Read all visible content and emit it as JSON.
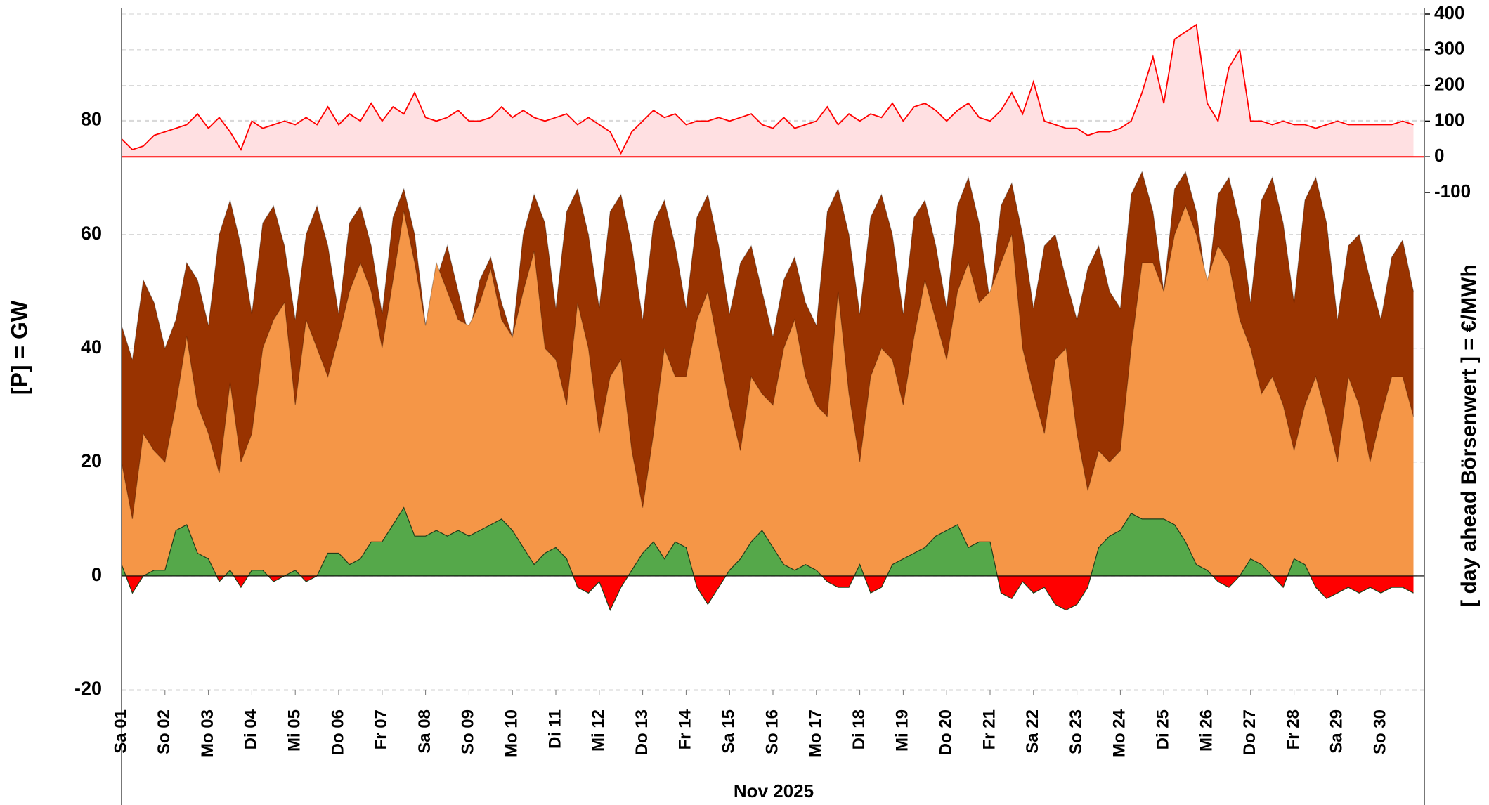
{
  "chart_data": {
    "type": "area",
    "xlabel": "Nov 2025",
    "ylabel": "[P]  =  GW",
    "y2label": "[ day ahead Börsenwert ]  =  €/MWh",
    "categories": [
      "Sa 01",
      null,
      null,
      null,
      "So 02",
      null,
      null,
      null,
      "Mo 03",
      null,
      null,
      null,
      "Di 04",
      null,
      null,
      null,
      "Mi 05",
      null,
      null,
      null,
      "Do 06",
      null,
      null,
      null,
      "Fr 07",
      null,
      null,
      null,
      "Sa 08",
      null,
      null,
      null,
      "So 09",
      null,
      null,
      null,
      "Mo 10",
      null,
      null,
      null,
      "Di 11",
      null,
      null,
      null,
      "Mi 12",
      null,
      null,
      null,
      "Do 13",
      null,
      null,
      null,
      "Fr 14",
      null,
      null,
      null,
      "Sa 15",
      null,
      null,
      null,
      "So 16",
      null,
      null,
      null,
      "Mo 17",
      null,
      null,
      null,
      "Di 18",
      null,
      null,
      null,
      "Mi 19",
      null,
      null,
      null,
      "Do 20",
      null,
      null,
      null,
      "Fr 21",
      null,
      null,
      null,
      "Sa 22",
      null,
      null,
      null,
      "So 23",
      null,
      null,
      null,
      "Mo 24",
      null,
      null,
      null,
      "Di 25",
      null,
      null,
      null,
      "Mi 26",
      null,
      null,
      null,
      "Do 27",
      null,
      null,
      null,
      "Fr 28",
      null,
      null,
      null,
      "Sa 29",
      null,
      null,
      null,
      "So 30",
      null,
      null,
      null
    ],
    "series": [
      {
        "color": "#993300",
        "values": [
          44,
          38,
          52,
          48,
          40,
          45,
          55,
          52,
          44,
          60,
          66,
          58,
          46,
          62,
          65,
          58,
          45,
          60,
          65,
          58,
          46,
          62,
          65,
          58,
          46,
          63,
          68,
          60,
          44,
          52,
          58,
          50,
          42,
          52,
          56,
          48,
          42,
          60,
          67,
          62,
          47,
          64,
          68,
          60,
          47,
          64,
          67,
          58,
          45,
          62,
          66,
          58,
          47,
          63,
          67,
          58,
          46,
          55,
          58,
          50,
          42,
          52,
          56,
          48,
          44,
          64,
          68,
          60,
          46,
          63,
          67,
          60,
          46,
          63,
          66,
          58,
          47,
          65,
          70,
          62,
          48,
          65,
          69,
          60,
          47,
          58,
          60,
          52,
          45,
          54,
          58,
          50,
          47,
          67,
          71,
          64,
          50,
          68,
          71,
          64,
          50,
          67,
          70,
          62,
          48,
          66,
          70,
          62,
          48,
          66,
          70,
          62,
          45,
          58,
          60,
          52,
          45,
          56,
          59,
          50
        ]
      },
      {
        "color": "#f59647",
        "values": [
          20,
          10,
          25,
          22,
          20,
          30,
          42,
          30,
          25,
          18,
          34,
          20,
          25,
          40,
          45,
          48,
          30,
          45,
          40,
          35,
          42,
          50,
          55,
          50,
          40,
          52,
          64,
          55,
          44,
          55,
          50,
          45,
          44,
          48,
          54,
          45,
          42,
          50,
          57,
          40,
          38,
          30,
          48,
          40,
          25,
          35,
          38,
          22,
          12,
          25,
          40,
          35,
          35,
          45,
          50,
          40,
          30,
          22,
          35,
          32,
          30,
          40,
          45,
          35,
          30,
          28,
          50,
          32,
          20,
          35,
          40,
          38,
          30,
          42,
          52,
          45,
          38,
          50,
          55,
          48,
          50,
          55,
          60,
          40,
          32,
          25,
          38,
          40,
          25,
          15,
          22,
          20,
          22,
          40,
          55,
          55,
          50,
          60,
          65,
          60,
          52,
          58,
          55,
          45,
          40,
          32,
          35,
          30,
          22,
          30,
          35,
          28,
          20,
          35,
          30,
          20,
          28,
          35,
          35,
          28
        ]
      },
      {
        "color": "#55a84a",
        "negative_color": "#ff0000",
        "values": [
          2,
          -3,
          0,
          1,
          1,
          8,
          9,
          4,
          3,
          -1,
          1,
          -2,
          1,
          1,
          -1,
          0,
          1,
          -1,
          0,
          4,
          4,
          2,
          3,
          6,
          6,
          9,
          12,
          7,
          7,
          8,
          7,
          8,
          7,
          8,
          9,
          10,
          8,
          5,
          2,
          4,
          5,
          3,
          -2,
          -3,
          -1,
          -6,
          -2,
          1,
          4,
          6,
          3,
          6,
          5,
          -2,
          -5,
          -2,
          1,
          3,
          6,
          8,
          5,
          2,
          1,
          2,
          1,
          -1,
          -2,
          -2,
          2,
          -3,
          -2,
          2,
          3,
          4,
          5,
          7,
          8,
          9,
          5,
          6,
          6,
          -3,
          -4,
          -1,
          -3,
          -2,
          -5,
          -6,
          -5,
          -2,
          5,
          7,
          8,
          11,
          10,
          10,
          10,
          9,
          6,
          2,
          1,
          -1,
          -2,
          0,
          3,
          2,
          0,
          -2,
          3,
          2,
          -2,
          -4,
          -3,
          -2,
          -3,
          -2,
          -3,
          -2,
          -2,
          -3
        ]
      },
      {
        "color": "#ff0000",
        "fill": "#ffe0e2",
        "axis": "y2",
        "values": [
          50,
          20,
          30,
          60,
          70,
          80,
          90,
          120,
          80,
          110,
          70,
          20,
          100,
          80,
          90,
          100,
          90,
          110,
          90,
          140,
          90,
          120,
          100,
          150,
          100,
          140,
          120,
          180,
          110,
          100,
          110,
          130,
          100,
          100,
          110,
          140,
          110,
          130,
          110,
          100,
          110,
          120,
          90,
          110,
          90,
          70,
          10,
          70,
          100,
          130,
          110,
          120,
          90,
          100,
          100,
          110,
          100,
          110,
          120,
          90,
          80,
          110,
          80,
          90,
          100,
          140,
          90,
          120,
          100,
          120,
          110,
          150,
          100,
          140,
          150,
          130,
          100,
          130,
          150,
          110,
          100,
          130,
          180,
          120,
          210,
          100,
          90,
          80,
          80,
          60,
          70,
          70,
          80,
          100,
          180,
          280,
          150,
          330,
          350,
          370,
          150,
          100,
          250,
          300,
          100,
          100,
          90,
          100,
          90,
          90,
          80,
          90,
          100,
          90,
          90,
          90,
          90,
          90,
          100,
          90
        ]
      }
    ],
    "ylim": [
      -20,
      100
    ],
    "yticks": [
      -20,
      0,
      20,
      40,
      60,
      80
    ],
    "y2lim": [
      -100,
      400
    ],
    "y2ticks": [
      -100,
      0,
      100,
      200,
      300,
      400
    ],
    "negative_tick_color": "#ff0000",
    "grid": true
  }
}
